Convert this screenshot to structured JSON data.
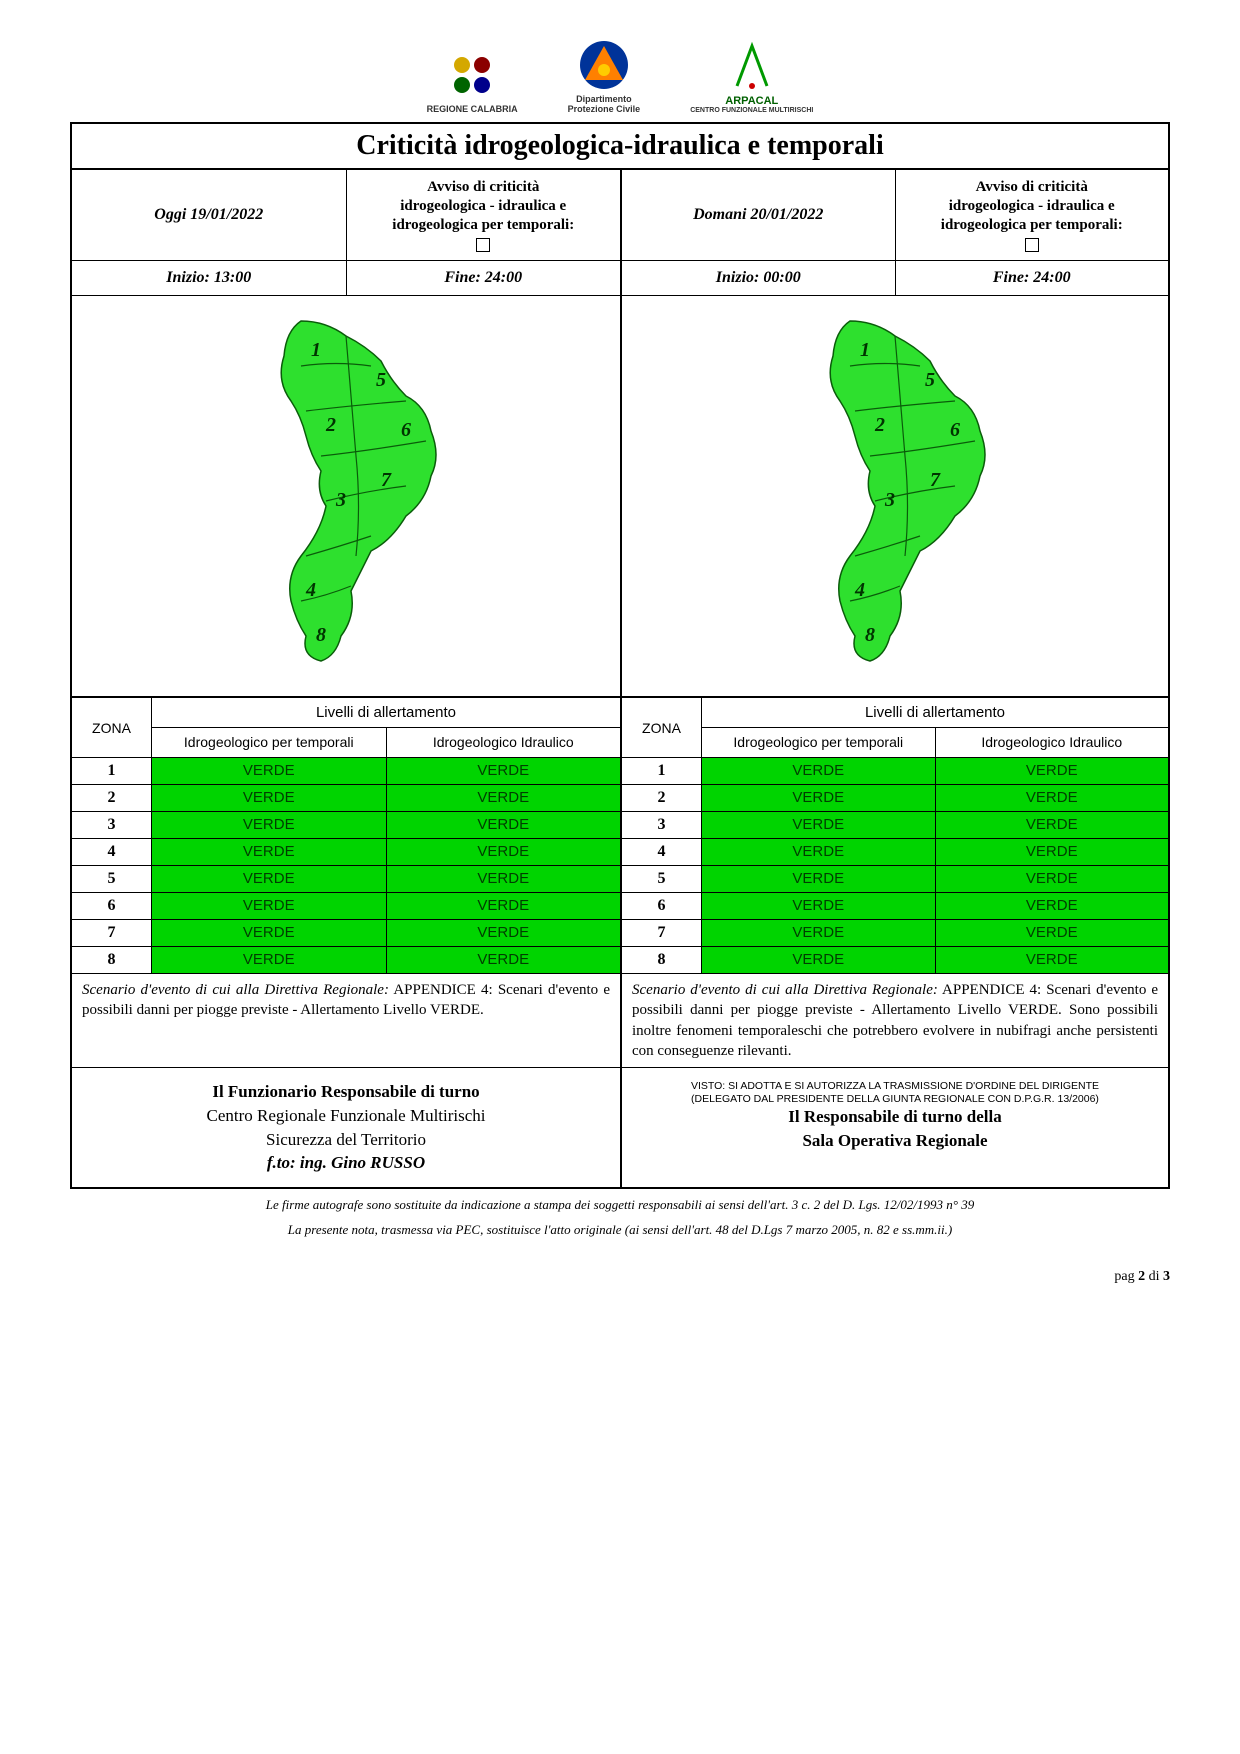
{
  "title": "Criticità idrogeologica-idraulica e temporali",
  "logos": {
    "regione": "REGIONE CALABRIA",
    "dipartimento1": "Dipartimento",
    "dipartimento2": "Protezione Civile",
    "arpacal": "ARPACAL",
    "arpacal_sub": "CENTRO FUNZIONALE MULTIRISCHI"
  },
  "today": {
    "date_label": "Oggi 19/01/2022",
    "avviso1": "Avviso di criticità",
    "avviso2": "idrogeologica - idraulica e",
    "avviso3": "idrogeologica per temporali:",
    "inizio": "Inizio: 13:00",
    "fine": "Fine: 24:00"
  },
  "tomorrow": {
    "date_label": "Domani 20/01/2022",
    "avviso1": "Avviso di criticità",
    "avviso2": "idrogeologica - idraulica e",
    "avviso3": "idrogeologica per temporali:",
    "inizio": "Inizio: 00:00",
    "fine": "Fine: 24:00"
  },
  "headers": {
    "zona": "ZONA",
    "livelli": "Livelli di allertamento",
    "col_temp": "Idrogeologico per temporali",
    "col_idr": "Idrogeologico Idraulico"
  },
  "colors": {
    "verde_bg": "#00d400",
    "verde_text": "#003d00",
    "map_fill": "#2ee02e",
    "map_stroke": "#0a5c0a"
  },
  "zones": [
    "1",
    "2",
    "3",
    "4",
    "5",
    "6",
    "7",
    "8"
  ],
  "alert_today": [
    {
      "t": "VERDE",
      "i": "VERDE"
    },
    {
      "t": "VERDE",
      "i": "VERDE"
    },
    {
      "t": "VERDE",
      "i": "VERDE"
    },
    {
      "t": "VERDE",
      "i": "VERDE"
    },
    {
      "t": "VERDE",
      "i": "VERDE"
    },
    {
      "t": "VERDE",
      "i": "VERDE"
    },
    {
      "t": "VERDE",
      "i": "VERDE"
    },
    {
      "t": "VERDE",
      "i": "VERDE"
    }
  ],
  "alert_tomorrow": [
    {
      "t": "VERDE",
      "i": "VERDE"
    },
    {
      "t": "VERDE",
      "i": "VERDE"
    },
    {
      "t": "VERDE",
      "i": "VERDE"
    },
    {
      "t": "VERDE",
      "i": "VERDE"
    },
    {
      "t": "VERDE",
      "i": "VERDE"
    },
    {
      "t": "VERDE",
      "i": "VERDE"
    },
    {
      "t": "VERDE",
      "i": "VERDE"
    },
    {
      "t": "VERDE",
      "i": "VERDE"
    }
  ],
  "scenario": {
    "it1": "Scenario d'evento di cui alla Direttiva Regionale:",
    "today": "APPENDICE 4: Scenari d'evento e possibili danni per piogge previste - Allertamento Livello VERDE.",
    "tomorrow": "APPENDICE 4: Scenari d'evento e possibili danni per piogge previste - Allertamento Livello VERDE. Sono possibili inoltre fenomeni temporaleschi che potrebbero evolvere in nubifragi anche persistenti con conseguenze rilevanti."
  },
  "sign": {
    "left1": "Il Funzionario Responsabile di turno",
    "left2": "Centro Regionale Funzionale Multirischi",
    "left3": "Sicurezza del Territorio",
    "left4": "f.to: ing. Gino RUSSO",
    "right_small1": "VISTO: SI ADOTTA E SI AUTORIZZA LA TRASMISSIONE D'ORDINE DEL DIRIGENTE",
    "right_small2": "(DELEGATO DAL PRESIDENTE DELLA GIUNTA REGIONALE CON D.P.G.R. 13/2006)",
    "right1": "Il Responsabile di turno della",
    "right2": "Sala Operativa Regionale"
  },
  "footnote1": "Le firme autografe sono sostituite da indicazione a stampa dei soggetti responsabili ai sensi dell'art. 3 c. 2 del D. Lgs. 12/02/1993 n° 39",
  "footnote2": "La presente nota, trasmessa via PEC, sostituisce l'atto originale (ai sensi dell'art. 48 del D.Lgs 7 marzo 2005, n. 82 e ss.mm.ii.)",
  "page": {
    "label": "pag",
    "cur": "2",
    "of": "di",
    "tot": "3"
  }
}
